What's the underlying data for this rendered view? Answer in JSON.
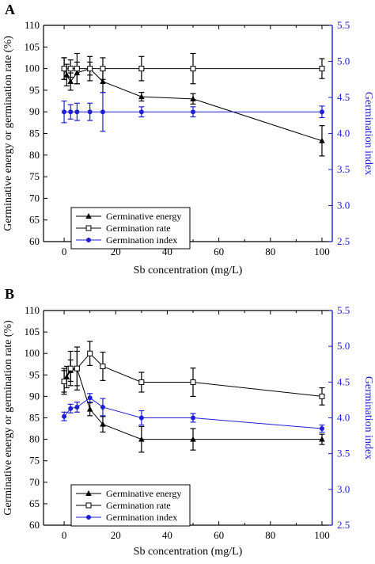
{
  "colors": {
    "black": "#000000",
    "blue": "#1f1fd6",
    "axis_right": "#1f1fd6"
  },
  "chart_data": [
    {
      "type": "line",
      "panel": "A",
      "xlabel": "Sb concentration (mg/L)",
      "ylabel": "Germinative energy or germination rate (%)",
      "y2label": "Germination index",
      "xlim": [
        -8,
        104
      ],
      "ylim": [
        60,
        110
      ],
      "y2lim": [
        2.5,
        5.5
      ],
      "xticks": [
        0,
        20,
        40,
        60,
        80,
        100
      ],
      "yticks": [
        60,
        65,
        70,
        75,
        80,
        85,
        90,
        95,
        100,
        105,
        110
      ],
      "y2ticks": [
        2.5,
        3.0,
        3.5,
        4.0,
        4.5,
        5.0,
        5.5
      ],
      "legend_position": "lower-left",
      "series": [
        {
          "name": "Germinative energy",
          "marker": "triangle",
          "color": "#000000",
          "axis": "left",
          "x": [
            0,
            1,
            2.5,
            5,
            10,
            15,
            30,
            50,
            100
          ],
          "y": [
            100,
            98.5,
            97,
            99,
            100,
            97,
            93.5,
            93,
            83.3
          ],
          "err": [
            2.5,
            2.5,
            2,
            2.5,
            1.5,
            2.5,
            1,
            1.2,
            3.5
          ]
        },
        {
          "name": "Germination rate",
          "marker": "square-open",
          "color": "#000000",
          "axis": "left",
          "x": [
            0,
            2.5,
            5,
            10,
            15,
            30,
            50,
            100
          ],
          "y": [
            100,
            100,
            100,
            100,
            100,
            100,
            100,
            100
          ],
          "err": [
            2.5,
            2,
            3.5,
            2.8,
            2.5,
            2.8,
            3.5,
            2.3
          ]
        },
        {
          "name": "Germination index",
          "marker": "circle",
          "color": "#1f1fd6",
          "axis": "right",
          "x": [
            0,
            2.5,
            5,
            10,
            15,
            30,
            50,
            100
          ],
          "y": [
            4.3,
            4.3,
            4.3,
            4.3,
            4.3,
            4.3,
            4.3,
            4.3
          ],
          "err": [
            0.15,
            0.1,
            0.12,
            0.12,
            0.27,
            0.07,
            0.07,
            0.08
          ]
        }
      ]
    },
    {
      "type": "line",
      "panel": "B",
      "xlabel": "Sb concentration (mg/L)",
      "ylabel": "Germinative energy or germination rate (%)",
      "y2label": "Germination index",
      "xlim": [
        -8,
        104
      ],
      "ylim": [
        60,
        110
      ],
      "y2lim": [
        2.5,
        5.5
      ],
      "xticks": [
        0,
        20,
        40,
        60,
        80,
        100
      ],
      "yticks": [
        60,
        65,
        70,
        75,
        80,
        85,
        90,
        95,
        100,
        105,
        110
      ],
      "y2ticks": [
        2.5,
        3.0,
        3.5,
        4.0,
        4.5,
        5.0,
        5.5
      ],
      "legend_position": "lower-left",
      "series": [
        {
          "name": "Germinative energy",
          "marker": "triangle",
          "color": "#000000",
          "axis": "left",
          "x": [
            0,
            1,
            2.5,
            5,
            10,
            15,
            30,
            50,
            100
          ],
          "y": [
            93.5,
            94.5,
            96,
            96.5,
            87,
            83.5,
            80,
            80,
            80
          ],
          "err": [
            2.5,
            2.5,
            2.5,
            4,
            1.5,
            1.8,
            3,
            2.5,
            1.2
          ]
        },
        {
          "name": "Germination rate",
          "marker": "square-open",
          "color": "#000000",
          "axis": "left",
          "x": [
            0,
            2.5,
            5,
            10,
            15,
            30,
            50,
            100
          ],
          "y": [
            93.5,
            96.5,
            96.5,
            100,
            97,
            93.3,
            93.3,
            90
          ],
          "err": [
            3,
            4,
            5,
            2.8,
            3.3,
            2.3,
            3.3,
            2
          ]
        },
        {
          "name": "Germination index",
          "marker": "circle",
          "color": "#1f1fd6",
          "axis": "right",
          "x": [
            0,
            2.5,
            5,
            10,
            15,
            30,
            50,
            100
          ],
          "y": [
            4.02,
            4.13,
            4.15,
            4.28,
            4.15,
            4.0,
            4.0,
            3.85
          ],
          "err": [
            0.06,
            0.06,
            0.07,
            0.06,
            0.12,
            0.1,
            0.06,
            0.05
          ]
        }
      ]
    }
  ]
}
